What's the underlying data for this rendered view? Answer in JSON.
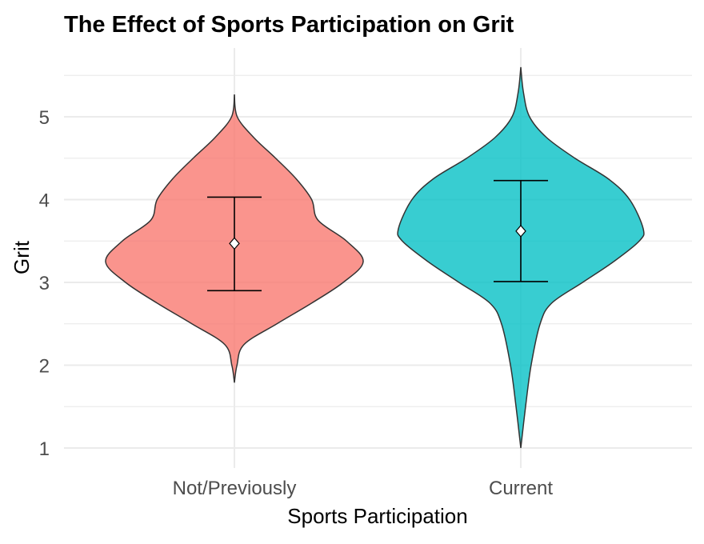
{
  "chart_data": {
    "type": "violin",
    "title": "The Effect of Sports Participation on Grit",
    "xlabel": "Sports Participation",
    "ylabel": "Grit",
    "categories": [
      "Not/Previously",
      "Current"
    ],
    "ylim": [
      0.8,
      5.7
    ],
    "yticks": [
      1,
      2,
      3,
      4,
      5
    ],
    "grid": true,
    "legend": "none",
    "series": [
      {
        "category": "Not/Previously",
        "color": "#F8766D",
        "mean": 3.47,
        "error_low": 2.9,
        "error_high": 4.03,
        "density_profile": [
          [
            1.79,
            0
          ],
          [
            2.0,
            0.02
          ],
          [
            2.25,
            0.075
          ],
          [
            2.5,
            0.33
          ],
          [
            2.75,
            0.6
          ],
          [
            3.0,
            0.845
          ],
          [
            3.25,
            1.0
          ],
          [
            3.5,
            0.87
          ],
          [
            3.75,
            0.65
          ],
          [
            4.0,
            0.6
          ],
          [
            4.25,
            0.48
          ],
          [
            4.5,
            0.32
          ],
          [
            4.75,
            0.15
          ],
          [
            5.0,
            0.022
          ],
          [
            5.27,
            0
          ]
        ]
      },
      {
        "category": "Current",
        "color": "#00BFC4",
        "mean": 3.62,
        "error_low": 3.01,
        "error_high": 4.23,
        "density_profile": [
          [
            1.0,
            0
          ],
          [
            1.5,
            0.037
          ],
          [
            2.0,
            0.08
          ],
          [
            2.5,
            0.15
          ],
          [
            2.75,
            0.24
          ],
          [
            3.0,
            0.48
          ],
          [
            3.25,
            0.72
          ],
          [
            3.5,
            0.92
          ],
          [
            3.65,
            0.95
          ],
          [
            4.0,
            0.845
          ],
          [
            4.25,
            0.68
          ],
          [
            4.5,
            0.42
          ],
          [
            4.75,
            0.2
          ],
          [
            5.0,
            0.068
          ],
          [
            5.3,
            0.02
          ],
          [
            5.6,
            0
          ]
        ]
      }
    ]
  }
}
